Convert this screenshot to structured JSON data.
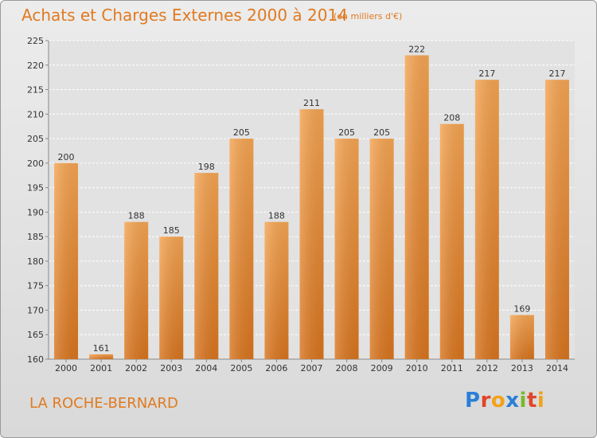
{
  "header": {
    "title": "Achats et Charges Externes 2000 à 2014",
    "subtitle": "(en milliers d'€)"
  },
  "footer": {
    "commune": "LA ROCHE-BERNARD",
    "logo": "Proxiti"
  },
  "colors": {
    "accent": "#e07a20",
    "bar_light": "#f4a452",
    "bar_dark": "#d8741e",
    "grid": "#ffffff"
  },
  "chart_data": {
    "type": "bar",
    "title": "Achats et Charges Externes 2000 à 2014",
    "subtitle": "(en milliers d'€)",
    "categories": [
      "2000",
      "2001",
      "2002",
      "2003",
      "2004",
      "2005",
      "2006",
      "2007",
      "2008",
      "2009",
      "2010",
      "2011",
      "2012",
      "2013",
      "2014"
    ],
    "values": [
      200,
      161,
      188,
      185,
      198,
      205,
      188,
      211,
      205,
      205,
      222,
      208,
      217,
      169,
      217
    ],
    "ylim": [
      160,
      225
    ],
    "yticks": [
      160,
      165,
      170,
      175,
      180,
      185,
      190,
      195,
      200,
      205,
      210,
      215,
      220,
      225
    ],
    "grid": true,
    "data_labels": true
  }
}
